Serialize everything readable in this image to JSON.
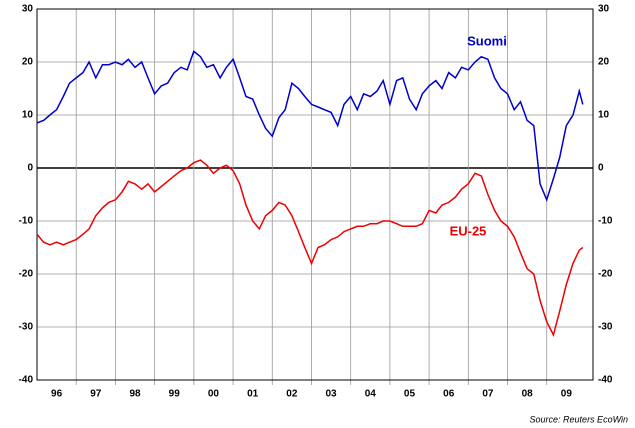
{
  "chart_data": {
    "type": "line",
    "source": "Source: Reuters EcoWin",
    "x": [
      1996.0,
      1996.17,
      1996.33,
      1996.5,
      1996.67,
      1996.83,
      1997.0,
      1997.17,
      1997.33,
      1997.5,
      1997.67,
      1997.83,
      1998.0,
      1998.17,
      1998.33,
      1998.5,
      1998.67,
      1998.83,
      1999.0,
      1999.17,
      1999.33,
      1999.5,
      1999.67,
      1999.83,
      2000.0,
      2000.17,
      2000.33,
      2000.5,
      2000.67,
      2000.83,
      2001.0,
      2001.17,
      2001.33,
      2001.5,
      2001.67,
      2001.83,
      2002.0,
      2002.17,
      2002.33,
      2002.5,
      2002.67,
      2002.83,
      2003.0,
      2003.17,
      2003.33,
      2003.5,
      2003.67,
      2003.83,
      2004.0,
      2004.17,
      2004.33,
      2004.5,
      2004.67,
      2004.83,
      2005.0,
      2005.17,
      2005.33,
      2005.5,
      2005.67,
      2005.83,
      2006.0,
      2006.17,
      2006.33,
      2006.5,
      2006.67,
      2006.83,
      2007.0,
      2007.17,
      2007.33,
      2007.5,
      2007.67,
      2007.83,
      2008.0,
      2008.17,
      2008.33,
      2008.5,
      2008.67,
      2008.83,
      2009.0,
      2009.17,
      2009.33,
      2009.5,
      2009.67,
      2009.83,
      2009.92
    ],
    "series": [
      {
        "name": "Suomi",
        "color": "#0000cc",
        "values": [
          8.5,
          9,
          10,
          11,
          13.5,
          16,
          17,
          18,
          20,
          17,
          19.5,
          19.5,
          20,
          19.5,
          20.5,
          19,
          20,
          17,
          14,
          15.5,
          16,
          18,
          19,
          18.5,
          22,
          21,
          19,
          19.5,
          17,
          19,
          20.5,
          17,
          13.5,
          13,
          10,
          7.5,
          6,
          9.5,
          11,
          16,
          15,
          13.5,
          12,
          11.5,
          11,
          10.5,
          8,
          12,
          13.5,
          11,
          14,
          13.5,
          14.5,
          16.5,
          12,
          16.5,
          17,
          13,
          11,
          14,
          15.5,
          16.5,
          15,
          18,
          17,
          19,
          18.5,
          20,
          21,
          20.5,
          17,
          15,
          14,
          11,
          12.5,
          9,
          8,
          -3,
          -6,
          -2,
          2,
          8,
          10,
          14.5,
          12
        ]
      },
      {
        "name": "EU-25",
        "color": "#ee0000",
        "values": [
          -12.5,
          -14,
          -14.5,
          -14,
          -14.5,
          -14,
          -13.5,
          -12.5,
          -11.5,
          -9,
          -7.5,
          -6.5,
          -6,
          -4.5,
          -2.5,
          -3,
          -4,
          -3,
          -4.5,
          -3.5,
          -2.5,
          -1.5,
          -0.5,
          0,
          1,
          1.5,
          0.5,
          -1,
          0,
          0.5,
          -0.5,
          -3,
          -7,
          -10,
          -11.5,
          -9,
          -8,
          -6.5,
          -7,
          -9,
          -12,
          -15,
          -18,
          -15,
          -14.5,
          -13.5,
          -13,
          -12,
          -11.5,
          -11,
          -11,
          -10.5,
          -10.5,
          -10,
          -10,
          -10.5,
          -11,
          -11,
          -11,
          -10.5,
          -8,
          -8.5,
          -7,
          -6.5,
          -5.5,
          -4,
          -3,
          -1,
          -1.5,
          -5,
          -8,
          -10,
          -11,
          -13,
          -16,
          -19,
          -20,
          -25,
          -29,
          -31.5,
          -27,
          -22,
          -18,
          -15.5,
          -15
        ]
      }
    ],
    "xlim": [
      1996,
      2010.18
    ],
    "xticks": [
      {
        "value": 1996.5,
        "label": "96"
      },
      {
        "value": 1997.5,
        "label": "97"
      },
      {
        "value": 1998.5,
        "label": "98"
      },
      {
        "value": 1999.5,
        "label": "99"
      },
      {
        "value": 2000.5,
        "label": "00"
      },
      {
        "value": 2001.5,
        "label": "01"
      },
      {
        "value": 2002.5,
        "label": "02"
      },
      {
        "value": 2003.5,
        "label": "03"
      },
      {
        "value": 2004.5,
        "label": "04"
      },
      {
        "value": 2005.5,
        "label": "05"
      },
      {
        "value": 2006.5,
        "label": "06"
      },
      {
        "value": 2007.5,
        "label": "07"
      },
      {
        "value": 2008.5,
        "label": "08"
      },
      {
        "value": 2009.5,
        "label": "09"
      }
    ],
    "ylim": [
      -40,
      30
    ],
    "yticks": [
      -40,
      -30,
      -20,
      -10,
      0,
      10,
      20,
      30
    ],
    "y2lim": [
      -40,
      30
    ],
    "y2ticks": [
      -40,
      -30,
      -20,
      -10,
      0,
      10,
      20,
      30
    ],
    "grid": true
  }
}
